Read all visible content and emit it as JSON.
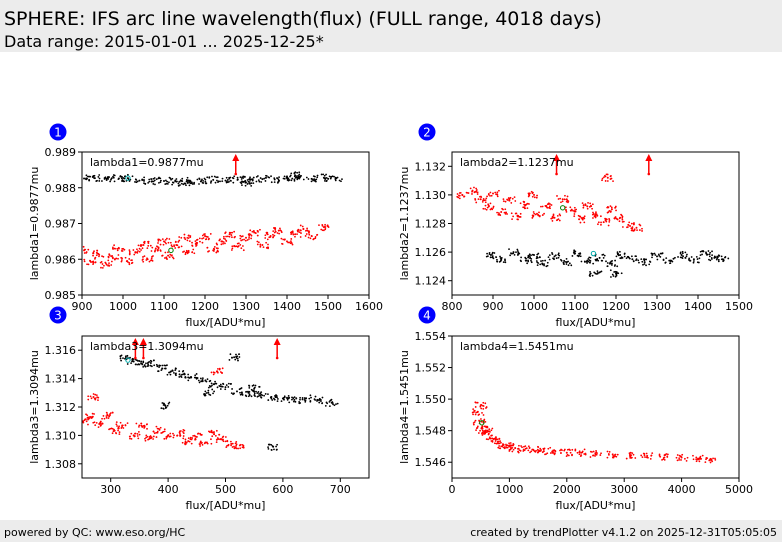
{
  "header": {
    "title": "SPHERE: IFS arc line wavelength(flux) (FULL range, 4018 days)",
    "subtitle": "Data range: 2015-01-01 ... 2025-12-25*"
  },
  "footer": {
    "left": "powered by QC: www.eso.org/HC",
    "right": "created by trendPlotter v4.1.2 on 2025-12-31T05:05:05"
  },
  "colors": {
    "recent": "#ff0000",
    "older": "#000000",
    "badge": "#0000ff",
    "first_marker": "#00aaaa",
    "last_marker": "#008000",
    "band": "#ececec"
  },
  "chart_data": [
    {
      "type": "scatter",
      "badge": "1",
      "annotation": "lambda1=0.9877mu",
      "xlabel": "flux/[ADU*mu]",
      "ylabel": "lambda1=0.9877mu",
      "xlim": [
        900,
        1600
      ],
      "ylim": [
        0.985,
        0.989
      ],
      "xticks": [
        900,
        1000,
        1100,
        1200,
        1300,
        1400,
        1500,
        1600
      ],
      "yticks": [
        "0.985",
        "0.986",
        "0.987",
        "0.988",
        "0.989"
      ],
      "outliers_above": [
        1275
      ],
      "markers": [
        {
          "x": 1012,
          "y": 0.98827,
          "color": "#00aaaa"
        },
        {
          "x": 1117,
          "y": 0.98625,
          "color": "#008000"
        }
      ],
      "series": [
        {
          "color": "#000000",
          "points": [
            [
              905,
              0.98826
            ],
            [
              930,
              0.98827
            ],
            [
              960,
              0.98825
            ],
            [
              990,
              0.98826
            ],
            [
              1012,
              0.98827
            ],
            [
              1040,
              0.9882
            ],
            [
              1070,
              0.98818
            ],
            [
              1100,
              0.98819
            ],
            [
              1130,
              0.98817
            ],
            [
              1160,
              0.9882
            ],
            [
              1190,
              0.98818
            ],
            [
              1220,
              0.98822
            ],
            [
              1250,
              0.9882
            ],
            [
              1280,
              0.98823
            ],
            [
              1310,
              0.98822
            ],
            [
              1340,
              0.98824
            ],
            [
              1370,
              0.98823
            ],
            [
              1400,
              0.98827
            ],
            [
              1430,
              0.98826
            ],
            [
              1460,
              0.98825
            ],
            [
              1490,
              0.98828
            ],
            [
              1520,
              0.98827
            ],
            [
              1150,
              0.98812
            ],
            [
              1300,
              0.98815
            ],
            [
              1420,
              0.98834
            ]
          ]
        },
        {
          "color": "#ff0000",
          "points": [
            [
              905,
              0.98625
            ],
            [
              920,
              0.98595
            ],
            [
              940,
              0.98615
            ],
            [
              960,
              0.98585
            ],
            [
              975,
              0.98605
            ],
            [
              990,
              0.9863
            ],
            [
              1010,
              0.98595
            ],
            [
              1030,
              0.9862
            ],
            [
              1050,
              0.9864
            ],
            [
              1060,
              0.986
            ],
            [
              1080,
              0.9863
            ],
            [
              1100,
              0.9865
            ],
            [
              1110,
              0.9861
            ],
            [
              1130,
              0.9864
            ],
            [
              1150,
              0.9866
            ],
            [
              1160,
              0.9862
            ],
            [
              1180,
              0.98645
            ],
            [
              1200,
              0.98665
            ],
            [
              1220,
              0.98625
            ],
            [
              1240,
              0.9865
            ],
            [
              1260,
              0.9867
            ],
            [
              1280,
              0.98635
            ],
            [
              1300,
              0.9866
            ],
            [
              1320,
              0.98675
            ],
            [
              1340,
              0.9864
            ],
            [
              1360,
              0.98665
            ],
            [
              1380,
              0.9868
            ],
            [
              1400,
              0.9865
            ],
            [
              1420,
              0.9867
            ],
            [
              1440,
              0.98685
            ],
            [
              1460,
              0.98665
            ],
            [
              1490,
              0.9869
            ]
          ]
        }
      ]
    },
    {
      "type": "scatter",
      "badge": "2",
      "annotation": "lambda2=1.1237mu",
      "xlabel": "flux/[ADU*mu]",
      "ylabel": "lambda2=1.1237mu",
      "xlim": [
        800,
        1500
      ],
      "ylim": [
        1.123,
        1.133
      ],
      "xticks": [
        800,
        900,
        1000,
        1100,
        1200,
        1300,
        1400,
        1500
      ],
      "yticks": [
        "1.124",
        "1.126",
        "1.128",
        "1.130",
        "1.132"
      ],
      "outliers_above": [
        1055,
        1280
      ],
      "markers": [
        {
          "x": 1070,
          "y": 1.1291,
          "color": "#008000"
        },
        {
          "x": 1145,
          "y": 1.1259,
          "color": "#00aaaa"
        }
      ],
      "series": [
        {
          "color": "#000000",
          "points": [
            [
              895,
              1.1258
            ],
            [
              920,
              1.1255
            ],
            [
              950,
              1.126
            ],
            [
              980,
              1.1254
            ],
            [
              1000,
              1.1258
            ],
            [
              1020,
              1.1252
            ],
            [
              1050,
              1.1257
            ],
            [
              1080,
              1.1253
            ],
            [
              1100,
              1.1259
            ],
            [
              1130,
              1.1254
            ],
            [
              1160,
              1.1256
            ],
            [
              1190,
              1.1252
            ],
            [
              1210,
              1.1258
            ],
            [
              1240,
              1.1255
            ],
            [
              1270,
              1.1253
            ],
            [
              1300,
              1.1257
            ],
            [
              1330,
              1.1254
            ],
            [
              1360,
              1.1258
            ],
            [
              1390,
              1.1255
            ],
            [
              1420,
              1.1259
            ],
            [
              1440,
              1.1256
            ],
            [
              1460,
              1.1255
            ],
            [
              1200,
              1.1245
            ],
            [
              1150,
              1.1245
            ]
          ]
        },
        {
          "color": "#ff0000",
          "points": [
            [
              825,
              1.13
            ],
            [
              850,
              1.1303
            ],
            [
              870,
              1.1297
            ],
            [
              890,
              1.1292
            ],
            [
              900,
              1.1301
            ],
            [
              920,
              1.1288
            ],
            [
              940,
              1.1296
            ],
            [
              960,
              1.1285
            ],
            [
              980,
              1.1293
            ],
            [
              1000,
              1.13
            ],
            [
              1010,
              1.1286
            ],
            [
              1030,
              1.1292
            ],
            [
              1050,
              1.1284
            ],
            [
              1070,
              1.1297
            ],
            [
              1090,
              1.1289
            ],
            [
              1110,
              1.1283
            ],
            [
              1130,
              1.1292
            ],
            [
              1150,
              1.1286
            ],
            [
              1170,
              1.1281
            ],
            [
              1190,
              1.129
            ],
            [
              1210,
              1.1284
            ],
            [
              1230,
              1.1279
            ],
            [
              1250,
              1.1277
            ],
            [
              1180,
              1.1312
            ]
          ]
        }
      ]
    },
    {
      "type": "scatter",
      "badge": "3",
      "annotation": "lambda3=1.3094mu",
      "xlabel": "flux/[ADU*mu]",
      "ylabel": "lambda3=1.3094mu",
      "xlim": [
        250,
        750
      ],
      "ylim": [
        1.307,
        1.317
      ],
      "xticks": [
        300,
        400,
        500,
        600,
        700
      ],
      "yticks": [
        "1.308",
        "1.310",
        "1.312",
        "1.314",
        "1.316"
      ],
      "outliers_above": [
        343,
        357,
        590
      ],
      "markers": [
        {
          "x": 330,
          "y": 1.3153,
          "color": "#00aaaa"
        }
      ],
      "series": [
        {
          "color": "#000000",
          "points": [
            [
              325,
              1.3154
            ],
            [
              340,
              1.3152
            ],
            [
              355,
              1.315
            ],
            [
              370,
              1.3151
            ],
            [
              390,
              1.3147
            ],
            [
              405,
              1.3145
            ],
            [
              420,
              1.3143
            ],
            [
              440,
              1.3141
            ],
            [
              460,
              1.3139
            ],
            [
              480,
              1.3136
            ],
            [
              500,
              1.3134
            ],
            [
              520,
              1.3131
            ],
            [
              540,
              1.313
            ],
            [
              560,
              1.3128
            ],
            [
              580,
              1.3127
            ],
            [
              600,
              1.3126
            ],
            [
              620,
              1.3125
            ],
            [
              640,
              1.3126
            ],
            [
              660,
              1.3125
            ],
            [
              685,
              1.3123
            ],
            [
              470,
              1.313
            ],
            [
              550,
              1.3133
            ],
            [
              515,
              1.3155
            ],
            [
              395,
              1.3121
            ],
            [
              583,
              1.3092
            ]
          ]
        },
        {
          "color": "#ff0000",
          "points": [
            [
              252,
              1.311
            ],
            [
              265,
              1.3113
            ],
            [
              280,
              1.3108
            ],
            [
              295,
              1.3114
            ],
            [
              305,
              1.3103
            ],
            [
              320,
              1.3107
            ],
            [
              340,
              1.31
            ],
            [
              355,
              1.3106
            ],
            [
              370,
              1.3098
            ],
            [
              385,
              1.3104
            ],
            [
              400,
              1.31
            ],
            [
              420,
              1.3102
            ],
            [
              435,
              1.3096
            ],
            [
              450,
              1.3099
            ],
            [
              465,
              1.3095
            ],
            [
              480,
              1.3101
            ],
            [
              495,
              1.3097
            ],
            [
              510,
              1.3094
            ],
            [
              525,
              1.3093
            ],
            [
              270,
              1.3127
            ],
            [
              485,
              1.3145
            ]
          ]
        }
      ]
    },
    {
      "type": "scatter",
      "badge": "4",
      "annotation": "lambda4=1.5451mu",
      "xlabel": "flux/[ADU*mu]",
      "ylabel": "lambda4=1.5451mu",
      "xlim": [
        0,
        5000
      ],
      "ylim": [
        1.545,
        1.554
      ],
      "xticks": [
        0,
        1000,
        2000,
        3000,
        4000,
        5000
      ],
      "yticks": [
        "1.546",
        "1.548",
        "1.550",
        "1.552",
        "1.554"
      ],
      "outliers_above": [],
      "markers": [
        {
          "x": 520,
          "y": 1.5485,
          "color": "#008000"
        }
      ],
      "series": [
        {
          "color": "#ff0000",
          "points": [
            [
              450,
              1.5492
            ],
            [
              480,
              1.5486
            ],
            [
              520,
              1.5482
            ],
            [
              560,
              1.5478
            ],
            [
              620,
              1.548
            ],
            [
              700,
              1.5475
            ],
            [
              800,
              1.5473
            ],
            [
              900,
              1.5471
            ],
            [
              1000,
              1.547
            ],
            [
              1100,
              1.5469
            ],
            [
              1250,
              1.5468
            ],
            [
              1400,
              1.5468
            ],
            [
              1600,
              1.5467
            ],
            [
              1800,
              1.5467
            ],
            [
              2000,
              1.5466
            ],
            [
              2250,
              1.5466
            ],
            [
              2500,
              1.5465
            ],
            [
              2800,
              1.5465
            ],
            [
              3100,
              1.5464
            ],
            [
              3400,
              1.5464
            ],
            [
              3700,
              1.5463
            ],
            [
              4000,
              1.5463
            ],
            [
              4300,
              1.5462
            ],
            [
              4500,
              1.5462
            ],
            [
              500,
              1.5496
            ]
          ]
        }
      ]
    }
  ]
}
